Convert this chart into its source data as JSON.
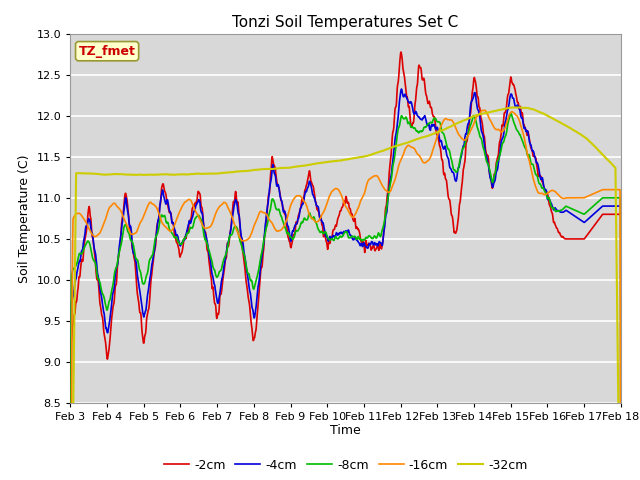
{
  "title": "Tonzi Soil Temperatures Set C",
  "xlabel": "Time",
  "ylabel": "Soil Temperature (C)",
  "ylim": [
    8.5,
    13.0
  ],
  "annotation": "TZ_fmet",
  "legend_labels": [
    "-2cm",
    "-4cm",
    "-8cm",
    "-16cm",
    "-32cm"
  ],
  "legend_colors": [
    "#dd0000",
    "#0000dd",
    "#00bb00",
    "#ff8800",
    "#cccc00"
  ],
  "line_widths": [
    1.2,
    1.2,
    1.2,
    1.2,
    1.5
  ],
  "xtick_labels": [
    "Feb 3",
    "Feb 4",
    "Feb 5",
    "Feb 6",
    "Feb 7",
    "Feb 8",
    "Feb 9",
    "Feb 10",
    "Feb 11",
    "Feb 12",
    "Feb 13",
    "Feb 14",
    "Feb 15",
    "Feb 16",
    "Feb 17",
    "Feb 18"
  ],
  "plot_bg_color": "#d8d8d8",
  "fig_bg_color": "#ffffff",
  "grid_color": "#ffffff",
  "annotation_bg": "#ffffcc",
  "annotation_fg": "#cc0000",
  "annotation_edge": "#999933"
}
